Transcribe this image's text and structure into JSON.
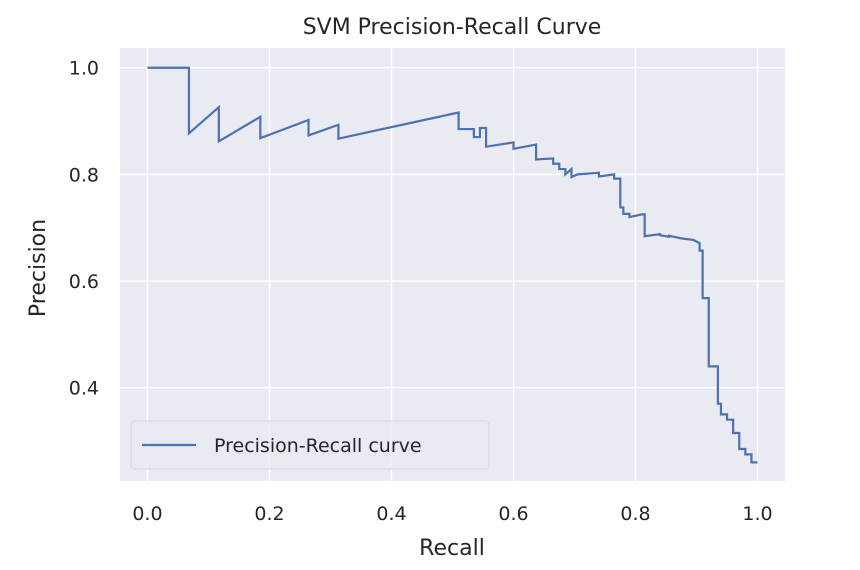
{
  "chart_data": {
    "type": "line",
    "title": "SVM Precision-Recall Curve",
    "xlabel": "Recall",
    "ylabel": "Precision",
    "xlim": [
      -0.045,
      1.045
    ],
    "ylim": [
      0.225,
      1.037
    ],
    "xticks": [
      0.0,
      0.2,
      0.4,
      0.6,
      0.8,
      1.0
    ],
    "xtick_labels": [
      "0.0",
      "0.2",
      "0.4",
      "0.6",
      "0.8",
      "1.0"
    ],
    "yticks": [
      0.4,
      0.6,
      0.8,
      1.0
    ],
    "ytick_labels": [
      "0.4",
      "0.6",
      "0.8",
      "1.0"
    ],
    "grid": true,
    "legend_position": "lower-left",
    "background_color": "#eaeaf2",
    "grid_color": "#ffffff",
    "series": [
      {
        "name": "Precision-Recall curve",
        "color": "#4c72b0",
        "step": "post",
        "x": [
          0.0,
          0.068,
          0.068,
          0.117,
          0.117,
          0.185,
          0.185,
          0.264,
          0.264,
          0.313,
          0.313,
          0.51,
          0.51,
          0.535,
          0.535,
          0.545,
          0.545,
          0.555,
          0.555,
          0.6,
          0.6,
          0.637,
          0.637,
          0.665,
          0.665,
          0.675,
          0.675,
          0.685,
          0.685,
          0.695,
          0.695,
          0.705,
          0.705,
          0.74,
          0.74,
          0.765,
          0.765,
          0.775,
          0.775,
          0.78,
          0.78,
          0.79,
          0.79,
          0.81,
          0.81,
          0.815,
          0.815,
          0.84,
          0.84,
          0.855,
          0.855,
          0.875,
          0.875,
          0.895,
          0.895,
          0.905,
          0.905,
          0.91,
          0.91,
          0.92,
          0.92,
          0.935,
          0.935,
          0.94,
          0.94,
          0.95,
          0.95,
          0.96,
          0.96,
          0.97,
          0.97,
          0.98,
          0.98,
          0.99,
          0.99,
          1.0
        ],
        "y": [
          1.0,
          1.0,
          0.877,
          0.926,
          0.862,
          0.908,
          0.868,
          0.902,
          0.873,
          0.893,
          0.867,
          0.916,
          0.885,
          0.885,
          0.87,
          0.87,
          0.887,
          0.887,
          0.852,
          0.86,
          0.848,
          0.856,
          0.828,
          0.83,
          0.82,
          0.82,
          0.81,
          0.81,
          0.8,
          0.81,
          0.795,
          0.8,
          0.8,
          0.803,
          0.796,
          0.8,
          0.792,
          0.792,
          0.738,
          0.738,
          0.726,
          0.726,
          0.72,
          0.725,
          0.725,
          0.725,
          0.684,
          0.688,
          0.686,
          0.683,
          0.685,
          0.68,
          0.68,
          0.677,
          0.677,
          0.671,
          0.657,
          0.657,
          0.568,
          0.568,
          0.44,
          0.44,
          0.37,
          0.37,
          0.35,
          0.35,
          0.34,
          0.34,
          0.315,
          0.315,
          0.285,
          0.285,
          0.275,
          0.275,
          0.26,
          0.26
        ]
      }
    ]
  }
}
